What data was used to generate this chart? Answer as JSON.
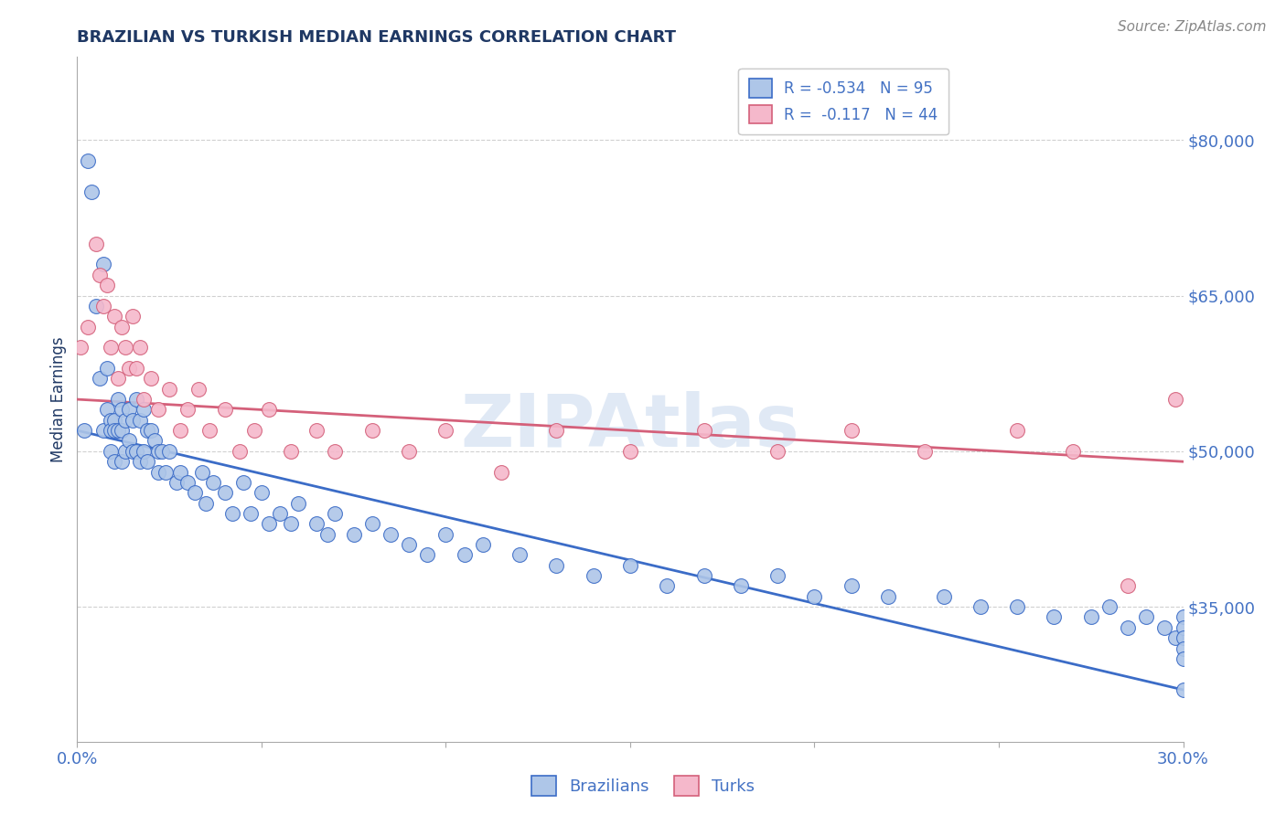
{
  "title": "BRAZILIAN VS TURKISH MEDIAN EARNINGS CORRELATION CHART",
  "source": "Source: ZipAtlas.com",
  "ylabel": "Median Earnings",
  "xlim": [
    0.0,
    0.3
  ],
  "ylim": [
    22000,
    88000
  ],
  "yticks": [
    35000,
    50000,
    65000,
    80000
  ],
  "ytick_labels": [
    "$35,000",
    "$50,000",
    "$65,000",
    "$80,000"
  ],
  "xticks": [
    0.0,
    0.05,
    0.1,
    0.15,
    0.2,
    0.25,
    0.3
  ],
  "xtick_labels": [
    "0.0%",
    "",
    "",
    "",
    "",
    "",
    "30.0%"
  ],
  "brazil_R": -0.534,
  "brazil_N": 95,
  "turkey_R": -0.117,
  "turkey_N": 44,
  "brazil_color": "#aec6e8",
  "turkey_color": "#f5b8cb",
  "brazil_line_color": "#3b6cc7",
  "turkey_line_color": "#d4607a",
  "title_color": "#1f3864",
  "axis_label_color": "#1f3864",
  "tick_color": "#4472c4",
  "watermark": "ZIPAtlas",
  "watermark_color": "#c8d8ee",
  "brazil_x": [
    0.002,
    0.003,
    0.004,
    0.005,
    0.006,
    0.007,
    0.007,
    0.008,
    0.008,
    0.009,
    0.009,
    0.009,
    0.01,
    0.01,
    0.01,
    0.011,
    0.011,
    0.012,
    0.012,
    0.012,
    0.013,
    0.013,
    0.014,
    0.014,
    0.015,
    0.015,
    0.016,
    0.016,
    0.017,
    0.017,
    0.018,
    0.018,
    0.019,
    0.019,
    0.02,
    0.021,
    0.022,
    0.022,
    0.023,
    0.024,
    0.025,
    0.027,
    0.028,
    0.03,
    0.032,
    0.034,
    0.035,
    0.037,
    0.04,
    0.042,
    0.045,
    0.047,
    0.05,
    0.052,
    0.055,
    0.058,
    0.06,
    0.065,
    0.068,
    0.07,
    0.075,
    0.08,
    0.085,
    0.09,
    0.095,
    0.1,
    0.105,
    0.11,
    0.12,
    0.13,
    0.14,
    0.15,
    0.16,
    0.17,
    0.18,
    0.19,
    0.2,
    0.21,
    0.22,
    0.235,
    0.245,
    0.255,
    0.265,
    0.275,
    0.28,
    0.285,
    0.29,
    0.295,
    0.298,
    0.3,
    0.3,
    0.3,
    0.3,
    0.3,
    0.3
  ],
  "brazil_y": [
    52000,
    78000,
    75000,
    64000,
    57000,
    68000,
    52000,
    58000,
    54000,
    53000,
    52000,
    50000,
    53000,
    52000,
    49000,
    55000,
    52000,
    54000,
    52000,
    49000,
    53000,
    50000,
    54000,
    51000,
    53000,
    50000,
    55000,
    50000,
    53000,
    49000,
    54000,
    50000,
    52000,
    49000,
    52000,
    51000,
    50000,
    48000,
    50000,
    48000,
    50000,
    47000,
    48000,
    47000,
    46000,
    48000,
    45000,
    47000,
    46000,
    44000,
    47000,
    44000,
    46000,
    43000,
    44000,
    43000,
    45000,
    43000,
    42000,
    44000,
    42000,
    43000,
    42000,
    41000,
    40000,
    42000,
    40000,
    41000,
    40000,
    39000,
    38000,
    39000,
    37000,
    38000,
    37000,
    38000,
    36000,
    37000,
    36000,
    36000,
    35000,
    35000,
    34000,
    34000,
    35000,
    33000,
    34000,
    33000,
    32000,
    34000,
    33000,
    32000,
    31000,
    30000,
    27000
  ],
  "turkey_x": [
    0.001,
    0.003,
    0.005,
    0.006,
    0.007,
    0.008,
    0.009,
    0.01,
    0.011,
    0.012,
    0.013,
    0.014,
    0.015,
    0.016,
    0.017,
    0.018,
    0.02,
    0.022,
    0.025,
    0.028,
    0.03,
    0.033,
    0.036,
    0.04,
    0.044,
    0.048,
    0.052,
    0.058,
    0.065,
    0.07,
    0.08,
    0.09,
    0.1,
    0.115,
    0.13,
    0.15,
    0.17,
    0.19,
    0.21,
    0.23,
    0.255,
    0.27,
    0.285,
    0.298
  ],
  "turkey_y": [
    60000,
    62000,
    70000,
    67000,
    64000,
    66000,
    60000,
    63000,
    57000,
    62000,
    60000,
    58000,
    63000,
    58000,
    60000,
    55000,
    57000,
    54000,
    56000,
    52000,
    54000,
    56000,
    52000,
    54000,
    50000,
    52000,
    54000,
    50000,
    52000,
    50000,
    52000,
    50000,
    52000,
    48000,
    52000,
    50000,
    52000,
    50000,
    52000,
    50000,
    52000,
    50000,
    37000,
    55000
  ]
}
